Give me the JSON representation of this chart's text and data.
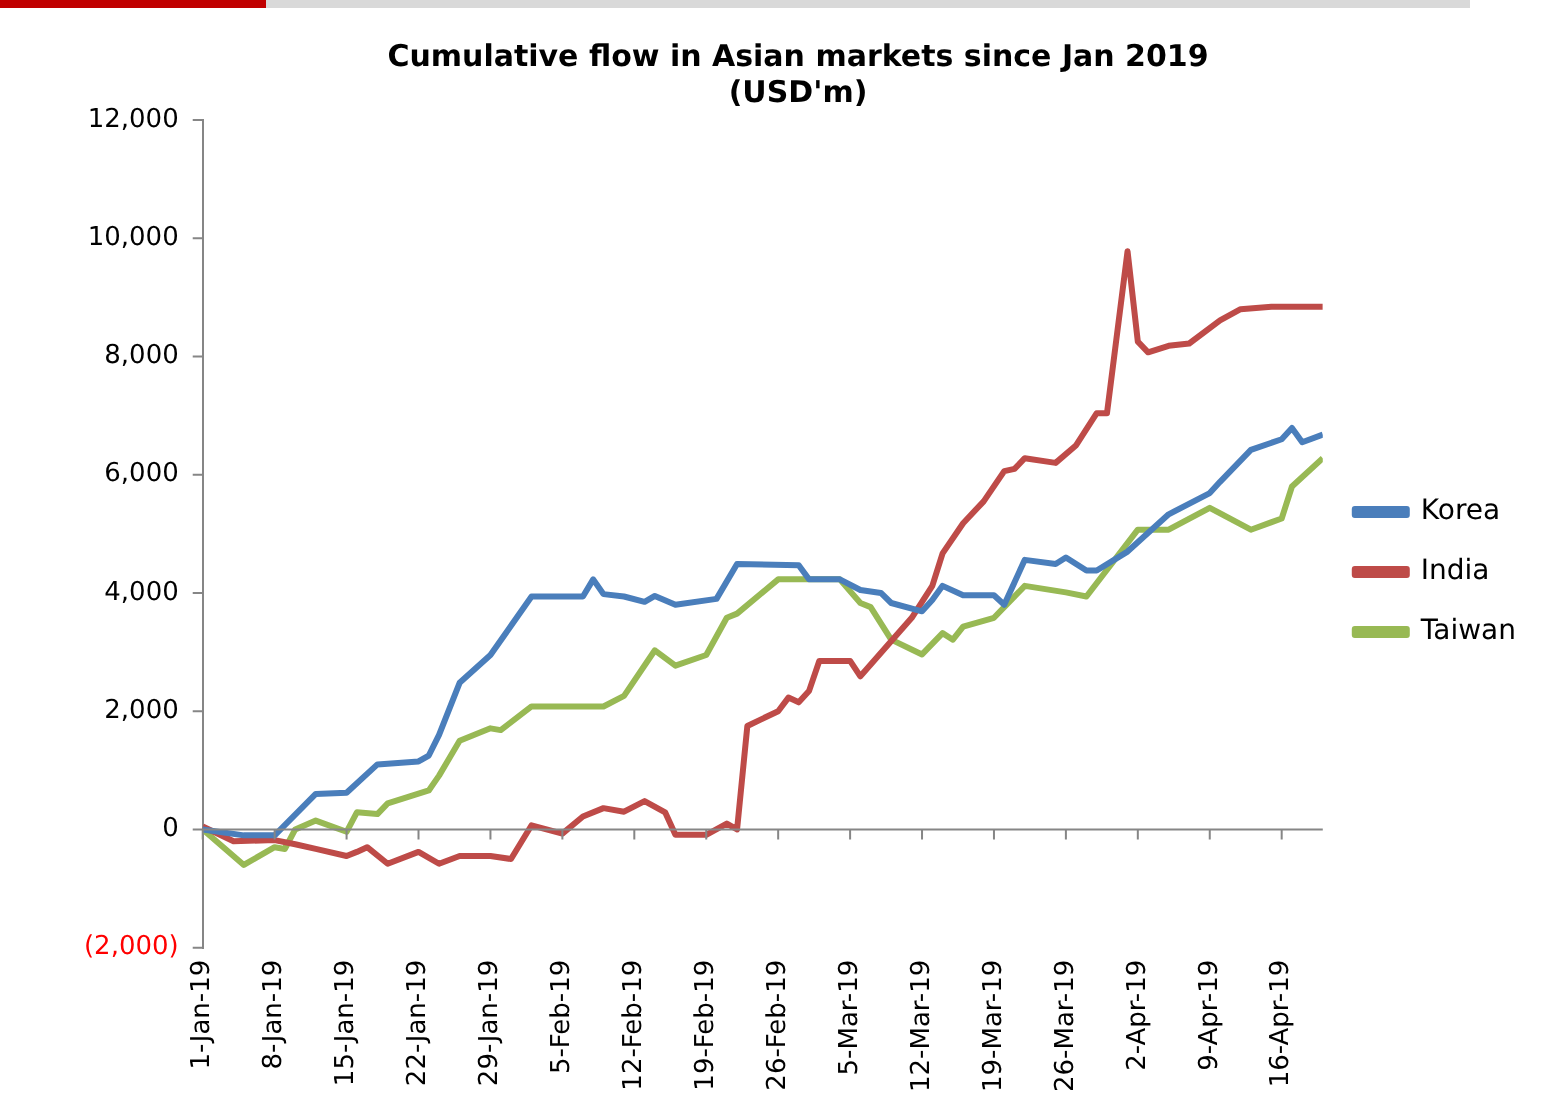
{
  "chart_data": {
    "type": "line",
    "title": "Cumulative flow in Asian markets since Jan 2019\n(USD'm)",
    "xlim": [
      "2019-01-01",
      "2019-04-20"
    ],
    "xticks": [
      {
        "value": "2019-01-01",
        "label": "1-Jan-19"
      },
      {
        "value": "2019-01-08",
        "label": "8-Jan-19"
      },
      {
        "value": "2019-01-15",
        "label": "15-Jan-19"
      },
      {
        "value": "2019-01-22",
        "label": "22-Jan-19"
      },
      {
        "value": "2019-01-29",
        "label": "29-Jan-19"
      },
      {
        "value": "2019-02-05",
        "label": "5-Feb-19"
      },
      {
        "value": "2019-02-12",
        "label": "12-Feb-19"
      },
      {
        "value": "2019-02-19",
        "label": "19-Feb-19"
      },
      {
        "value": "2019-02-26",
        "label": "26-Feb-19"
      },
      {
        "value": "2019-03-05",
        "label": "5-Mar-19"
      },
      {
        "value": "2019-03-12",
        "label": "12-Mar-19"
      },
      {
        "value": "2019-03-19",
        "label": "19-Mar-19"
      },
      {
        "value": "2019-03-26",
        "label": "26-Mar-19"
      },
      {
        "value": "2019-04-02",
        "label": "2-Apr-19"
      },
      {
        "value": "2019-04-09",
        "label": "9-Apr-19"
      },
      {
        "value": "2019-04-16",
        "label": "16-Apr-19"
      }
    ],
    "ylim": [
      -2000,
      12000
    ],
    "yticks": [
      {
        "value": -2000,
        "label": "(2,000)"
      },
      {
        "value": 0,
        "label": "0"
      },
      {
        "value": 2000,
        "label": "2,000"
      },
      {
        "value": 4000,
        "label": "4,000"
      },
      {
        "value": 6000,
        "label": "6,000"
      },
      {
        "value": 8000,
        "label": "8,000"
      },
      {
        "value": 10000,
        "label": "10,000"
      },
      {
        "value": 12000,
        "label": "12,000"
      }
    ],
    "legend": "right",
    "marker": "none",
    "line_style": "solid",
    "series": [
      {
        "name": "Korea",
        "color": "#4a7ebb",
        "x": [
          "2019-01-01",
          "2019-01-05",
          "2019-01-08",
          "2019-01-12",
          "2019-01-15",
          "2019-01-18",
          "2019-01-22",
          "2019-01-23",
          "2019-01-24",
          "2019-01-26",
          "2019-01-29",
          "2019-02-02",
          "2019-02-07",
          "2019-02-08",
          "2019-02-09",
          "2019-02-11",
          "2019-02-13",
          "2019-02-14",
          "2019-02-16",
          "2019-02-20",
          "2019-02-22",
          "2019-02-28",
          "2019-03-01",
          "2019-03-04",
          "2019-03-06",
          "2019-03-08",
          "2019-03-09",
          "2019-03-12",
          "2019-03-13",
          "2019-03-14",
          "2019-03-16",
          "2019-03-19",
          "2019-03-20",
          "2019-03-22",
          "2019-03-25",
          "2019-03-26",
          "2019-03-28",
          "2019-03-29",
          "2019-04-01",
          "2019-04-05",
          "2019-04-09",
          "2019-04-10",
          "2019-04-13",
          "2019-04-16",
          "2019-04-17",
          "2019-04-18",
          "2019-04-20"
        ],
        "values": [
          0,
          -100,
          -100,
          600,
          620,
          1100,
          1150,
          1250,
          1600,
          2480,
          2950,
          3940,
          3940,
          4230,
          3980,
          3940,
          3850,
          3950,
          3800,
          3900,
          4490,
          4470,
          4230,
          4230,
          4050,
          4000,
          3830,
          3690,
          3880,
          4120,
          3960,
          3960,
          3800,
          4560,
          4490,
          4600,
          4380,
          4380,
          4700,
          5330,
          5690,
          5880,
          6420,
          6600,
          6790,
          6550,
          6680
        ]
      },
      {
        "name": "India",
        "color": "#be4b48",
        "x": [
          "2019-01-01",
          "2019-01-04",
          "2019-01-08",
          "2019-01-10",
          "2019-01-12",
          "2019-01-15",
          "2019-01-16",
          "2019-01-17",
          "2019-01-19",
          "2019-01-22",
          "2019-01-24",
          "2019-01-26",
          "2019-01-29",
          "2019-01-31",
          "2019-02-02",
          "2019-02-05",
          "2019-02-07",
          "2019-02-09",
          "2019-02-11",
          "2019-02-13",
          "2019-02-15",
          "2019-02-16",
          "2019-02-19",
          "2019-02-21",
          "2019-02-22",
          "2019-02-23",
          "2019-02-26",
          "2019-02-27",
          "2019-02-28",
          "2019-03-01",
          "2019-03-02",
          "2019-03-05",
          "2019-03-06",
          "2019-03-11",
          "2019-03-13",
          "2019-03-14",
          "2019-03-16",
          "2019-03-18",
          "2019-03-20",
          "2019-03-21",
          "2019-03-22",
          "2019-03-25",
          "2019-03-27",
          "2019-03-29",
          "2019-03-30",
          "2019-04-01",
          "2019-04-02",
          "2019-04-03",
          "2019-04-05",
          "2019-04-07",
          "2019-04-10",
          "2019-04-12",
          "2019-04-15",
          "2019-04-20"
        ],
        "values": [
          50,
          -200,
          -180,
          -250,
          -330,
          -450,
          -380,
          -300,
          -580,
          -380,
          -580,
          -450,
          -450,
          -500,
          70,
          -70,
          220,
          360,
          300,
          480,
          290,
          -90,
          -90,
          100,
          0,
          1750,
          2000,
          2230,
          2150,
          2340,
          2850,
          2850,
          2590,
          3580,
          4120,
          4670,
          5180,
          5550,
          6060,
          6100,
          6280,
          6200,
          6500,
          7040,
          7040,
          9780,
          8250,
          8070,
          8180,
          8220,
          8610,
          8800,
          8840,
          8840
        ]
      },
      {
        "name": "Taiwan",
        "color": "#98b954",
        "x": [
          "2019-01-01",
          "2019-01-05",
          "2019-01-08",
          "2019-01-09",
          "2019-01-10",
          "2019-01-12",
          "2019-01-15",
          "2019-01-16",
          "2019-01-18",
          "2019-01-19",
          "2019-01-23",
          "2019-01-24",
          "2019-01-26",
          "2019-01-29",
          "2019-01-30",
          "2019-02-02",
          "2019-02-09",
          "2019-02-11",
          "2019-02-14",
          "2019-02-16",
          "2019-02-19",
          "2019-02-21",
          "2019-02-22",
          "2019-02-26",
          "2019-03-04",
          "2019-03-06",
          "2019-03-07",
          "2019-03-09",
          "2019-03-12",
          "2019-03-14",
          "2019-03-15",
          "2019-03-16",
          "2019-03-19",
          "2019-03-22",
          "2019-03-26",
          "2019-03-28",
          "2019-04-02",
          "2019-04-05",
          "2019-04-09",
          "2019-04-13",
          "2019-04-16",
          "2019-04-17",
          "2019-04-20"
        ],
        "values": [
          0,
          -600,
          -300,
          -330,
          0,
          150,
          -40,
          290,
          260,
          440,
          660,
          910,
          1500,
          1710,
          1680,
          2080,
          2080,
          2260,
          3030,
          2770,
          2950,
          3580,
          3650,
          4230,
          4230,
          3830,
          3760,
          3210,
          2960,
          3320,
          3210,
          3430,
          3580,
          4120,
          4010,
          3940,
          5070,
          5070,
          5440,
          5070,
          5260,
          5800,
          6280
        ]
      }
    ]
  }
}
